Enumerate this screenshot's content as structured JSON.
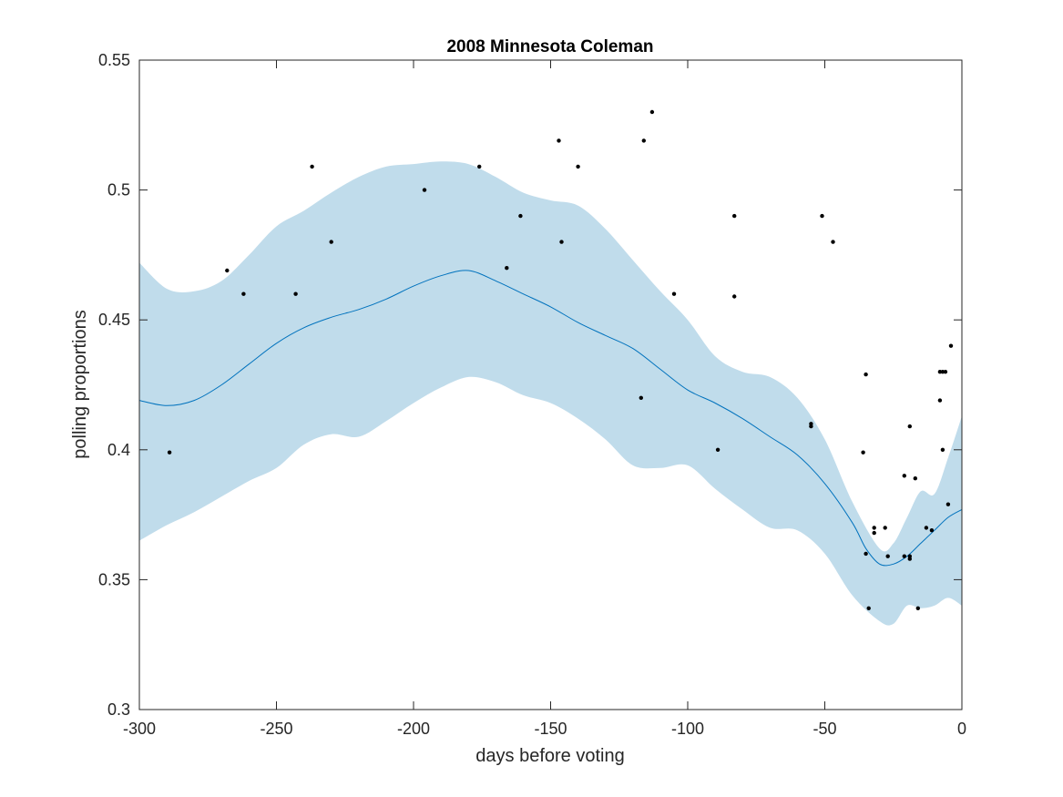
{
  "chart_data": {
    "type": "scatter",
    "title": "2008 Minnesota Coleman",
    "xlabel": "days before voting",
    "ylabel": "polling proportions",
    "xlim": [
      -300,
      0
    ],
    "ylim": [
      0.3,
      0.55
    ],
    "xticks": [
      -300,
      -250,
      -200,
      -150,
      -100,
      -50,
      0
    ],
    "xtick_labels": [
      "-300",
      "-250",
      "-200",
      "-150",
      "-100",
      "-50",
      "0"
    ],
    "yticks": [
      0.3,
      0.35,
      0.4,
      0.45,
      0.5,
      0.55
    ],
    "ytick_labels": [
      "0.3",
      "0.35",
      "0.4",
      "0.45",
      "0.5",
      "0.55"
    ],
    "grid": false,
    "colors": {
      "band": "#c0dceb",
      "trend": "#0072bd",
      "points": "#000000",
      "axes": "#262626"
    },
    "series": [
      {
        "type": "area_band",
        "x": [
          -300,
          -290,
          -280,
          -270,
          -260,
          -250,
          -240,
          -230,
          -220,
          -210,
          -200,
          -190,
          -180,
          -170,
          -160,
          -150,
          -140,
          -130,
          -120,
          -110,
          -100,
          -90,
          -80,
          -70,
          -60,
          -50,
          -40,
          -30,
          -25,
          -20,
          -15,
          -10,
          -5,
          0
        ],
        "upper": [
          0.472,
          0.462,
          0.461,
          0.465,
          0.475,
          0.486,
          0.492,
          0.499,
          0.505,
          0.509,
          0.51,
          0.511,
          0.51,
          0.505,
          0.499,
          0.496,
          0.494,
          0.485,
          0.473,
          0.461,
          0.45,
          0.436,
          0.43,
          0.428,
          0.42,
          0.404,
          0.38,
          0.362,
          0.364,
          0.374,
          0.384,
          0.383,
          0.397,
          0.413
        ],
        "lower": [
          0.365,
          0.371,
          0.376,
          0.382,
          0.388,
          0.393,
          0.402,
          0.406,
          0.405,
          0.411,
          0.418,
          0.424,
          0.428,
          0.426,
          0.421,
          0.418,
          0.412,
          0.404,
          0.394,
          0.393,
          0.394,
          0.385,
          0.377,
          0.37,
          0.369,
          0.36,
          0.344,
          0.334,
          0.333,
          0.34,
          0.339,
          0.34,
          0.343,
          0.34
        ]
      },
      {
        "type": "line",
        "x": [
          -300,
          -290,
          -280,
          -270,
          -260,
          -250,
          -240,
          -230,
          -220,
          -210,
          -200,
          -190,
          -180,
          -170,
          -160,
          -150,
          -140,
          -130,
          -120,
          -110,
          -100,
          -90,
          -80,
          -70,
          -60,
          -50,
          -40,
          -35,
          -30,
          -25,
          -20,
          -15,
          -10,
          -5,
          0
        ],
        "y": [
          0.419,
          0.417,
          0.419,
          0.425,
          0.433,
          0.441,
          0.447,
          0.451,
          0.454,
          0.458,
          0.463,
          0.467,
          0.469,
          0.465,
          0.46,
          0.455,
          0.449,
          0.444,
          0.439,
          0.431,
          0.423,
          0.418,
          0.412,
          0.405,
          0.398,
          0.387,
          0.372,
          0.362,
          0.356,
          0.356,
          0.359,
          0.364,
          0.369,
          0.374,
          0.377
        ]
      },
      {
        "type": "scatter",
        "x": [
          -289,
          -268,
          -262,
          -243,
          -237,
          -230,
          -196,
          -176,
          -166,
          -161,
          -147,
          -146,
          -140,
          -117,
          -116,
          -113,
          -105,
          -89,
          -83,
          -83,
          -55,
          -55,
          -51,
          -47,
          -36,
          -35,
          -35,
          -34,
          -32,
          -32,
          -28,
          -27,
          -21,
          -21,
          -19,
          -19,
          -19,
          -17,
          -16,
          -13,
          -11,
          -8,
          -8,
          -7,
          -7,
          -6,
          -5,
          -4
        ],
        "y": [
          0.399,
          0.469,
          0.46,
          0.46,
          0.509,
          0.48,
          0.5,
          0.509,
          0.47,
          0.49,
          0.519,
          0.48,
          0.509,
          0.42,
          0.519,
          0.53,
          0.46,
          0.4,
          0.49,
          0.459,
          0.41,
          0.409,
          0.49,
          0.48,
          0.399,
          0.36,
          0.429,
          0.339,
          0.37,
          0.368,
          0.37,
          0.359,
          0.39,
          0.359,
          0.409,
          0.359,
          0.358,
          0.389,
          0.339,
          0.37,
          0.369,
          0.419,
          0.43,
          0.43,
          0.4,
          0.43,
          0.379,
          0.44
        ]
      }
    ]
  }
}
